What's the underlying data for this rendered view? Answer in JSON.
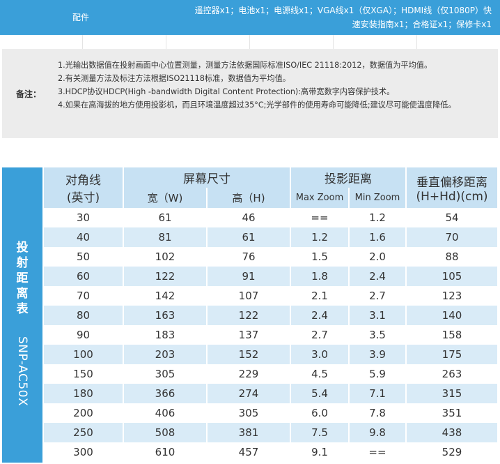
{
  "accessories": {
    "label": "配件",
    "text_line1": "遥控器x1；电池x1；电源线x1；VGA线x1（仅XGA）；HDMI线（仅1080P）快",
    "text_line2": "速安装指南x1；合格证x1；保修卡x1"
  },
  "notes": {
    "label": "备注：",
    "items": [
      "1.光输出数据值在投射画面中心位置测量，测量方法依据国际标准ISO/IEC 21118:2012，数据值为平均值。",
      "2.有关测量方法及标注方法根据ISO21118标准，数据值为平均值。",
      "3.HDCP协议HDCP(High -bandwidth Digital Content Protection):高带宽数字内容保护技术。",
      "4.如果在高海拔的地方使用投影机，而且环境温度超过35°C;光学部件的使用寿命可能降低;建议尽可能使温度降低。"
    ]
  },
  "throw_table": {
    "side_title": "投射距离表",
    "model": "SNP-AC50X",
    "headers": {
      "diagonal": "对角线",
      "diagonal_unit": "(英寸)",
      "screen_size": "屏幕尺寸",
      "width": "宽（W)",
      "height": "高（H)",
      "throw_distance": "投影距离",
      "max_zoom": "Max Zoom",
      "min_zoom": "Min Zoom",
      "offset": "垂直偏移距离",
      "offset_unit": "(H+Hd)(cm)"
    },
    "rows": [
      [
        "30",
        "61",
        "46",
        "==",
        "1.2",
        "54"
      ],
      [
        "40",
        "81",
        "61",
        "1.2",
        "1.6",
        "70"
      ],
      [
        "50",
        "102",
        "76",
        "1.5",
        "2.0",
        "88"
      ],
      [
        "60",
        "122",
        "91",
        "1.8",
        "2.4",
        "105"
      ],
      [
        "70",
        "142",
        "107",
        "2.1",
        "2.7",
        "123"
      ],
      [
        "80",
        "163",
        "122",
        "2.4",
        "3.1",
        "140"
      ],
      [
        "90",
        "183",
        "137",
        "2.7",
        "3.5",
        "158"
      ],
      [
        "100",
        "203",
        "152",
        "3.0",
        "3.9",
        "175"
      ],
      [
        "150",
        "305",
        "229",
        "4.5",
        "5.9",
        "263"
      ],
      [
        "180",
        "366",
        "274",
        "5.4",
        "7.1",
        "315"
      ],
      [
        "200",
        "406",
        "305",
        "6.0",
        "7.8",
        "351"
      ],
      [
        "250",
        "508",
        "381",
        "7.5",
        "9.8",
        "438"
      ],
      [
        "300",
        "610",
        "457",
        "9.1",
        "==",
        "529"
      ]
    ]
  }
}
